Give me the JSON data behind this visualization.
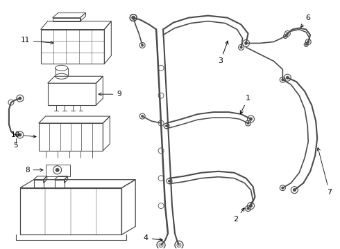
{
  "bg_color": "#ffffff",
  "line_color": "#4a4a4a",
  "label_fontsize": 7.5,
  "figsize": [
    4.9,
    3.6
  ],
  "dpi": 100
}
